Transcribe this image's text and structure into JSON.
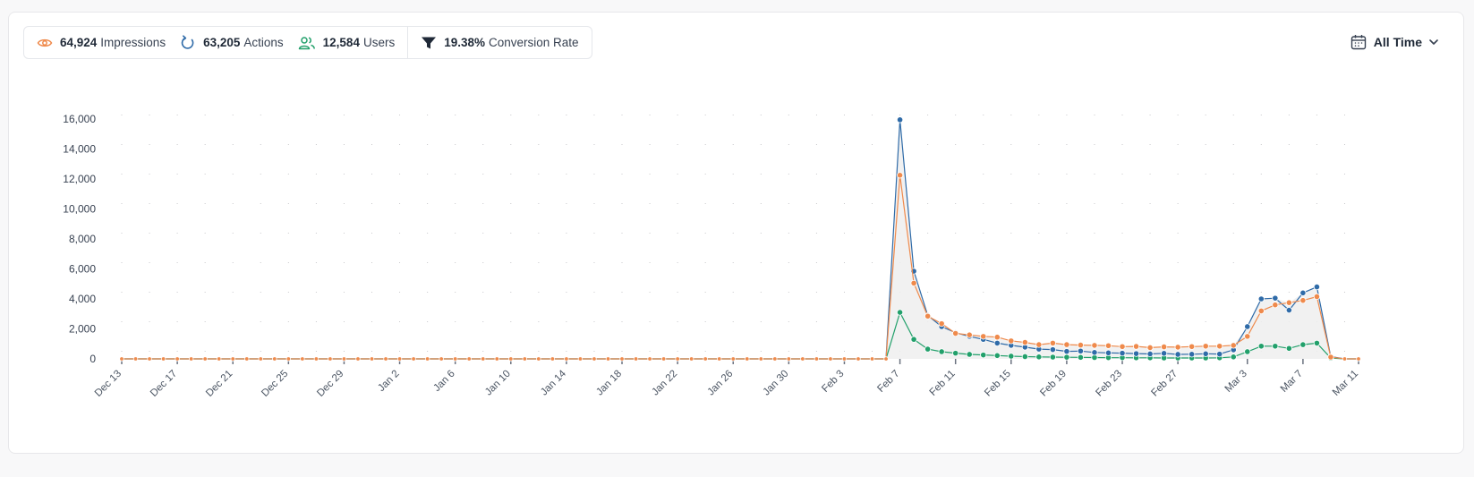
{
  "stats": {
    "impressions": {
      "value": "64,924",
      "label": "Impressions",
      "icon": "eye-icon",
      "color": "#ef8a4c"
    },
    "actions": {
      "value": "63,205",
      "label": "Actions",
      "icon": "refresh-icon",
      "color": "#2f6ba8"
    },
    "users": {
      "value": "12,584",
      "label": "Users",
      "icon": "users-icon",
      "color": "#22a06b"
    },
    "conversion": {
      "value": "19.38%",
      "label": "Conversion Rate",
      "icon": "funnel-icon",
      "color": "#1f2937"
    }
  },
  "range": {
    "label": "All Time",
    "icon": "calendar-icon",
    "chevron": "chevron-down-icon"
  },
  "chart_data": {
    "type": "line",
    "title": "",
    "xlabel": "",
    "ylabel": "",
    "ylim": [
      0,
      16000
    ],
    "yticks": [
      0,
      2000,
      4000,
      6000,
      8000,
      10000,
      12000,
      14000,
      16000
    ],
    "x_start": "2023-12-13",
    "x_end": "2024-03-11",
    "x_ticks": [
      "Dec 13",
      "Dec 17",
      "Dec 21",
      "Dec 25",
      "Dec 29",
      "Jan 2",
      "Jan 6",
      "Jan 10",
      "Jan 14",
      "Jan 18",
      "Jan 22",
      "Jan 26",
      "Jan 30",
      "Feb 3",
      "Feb 7",
      "Feb 11",
      "Feb 15",
      "Feb 19",
      "Feb 23",
      "Feb 27",
      "Mar 3",
      "Mar 7",
      "Mar 11"
    ],
    "grid": true,
    "colors": {
      "actions": "#2f6ba8",
      "impressions": "#ef8a4c",
      "users": "#22a06b",
      "area": "#efefef"
    },
    "series": [
      {
        "name": "Actions",
        "key": "actions",
        "points": [
          [
            "Feb 7",
            15950
          ],
          [
            "Feb 8",
            5850
          ],
          [
            "Feb 9",
            2900
          ],
          [
            "Feb 10",
            2150
          ],
          [
            "Feb 11",
            1750
          ],
          [
            "Feb 12",
            1500
          ],
          [
            "Feb 13",
            1300
          ],
          [
            "Feb 14",
            1050
          ],
          [
            "Feb 15",
            900
          ],
          [
            "Feb 16",
            780
          ],
          [
            "Feb 17",
            650
          ],
          [
            "Feb 18",
            620
          ],
          [
            "Feb 19",
            500
          ],
          [
            "Feb 20",
            520
          ],
          [
            "Feb 21",
            430
          ],
          [
            "Feb 22",
            400
          ],
          [
            "Feb 23",
            380
          ],
          [
            "Feb 24",
            350
          ],
          [
            "Feb 25",
            330
          ],
          [
            "Feb 26",
            370
          ],
          [
            "Feb 27",
            300
          ],
          [
            "Feb 28",
            310
          ],
          [
            "Feb 29",
            340
          ],
          [
            "Mar 1",
            320
          ],
          [
            "Mar 2",
            600
          ],
          [
            "Mar 3",
            2150
          ],
          [
            "Mar 4",
            4000
          ],
          [
            "Mar 5",
            4050
          ],
          [
            "Mar 6",
            3250
          ],
          [
            "Mar 7",
            4400
          ],
          [
            "Mar 8",
            4800
          ],
          [
            "Mar 9",
            150
          ],
          [
            "Mar 10",
            0
          ]
        ]
      },
      {
        "name": "Impressions",
        "key": "impressions",
        "points": [
          [
            "Feb 7",
            12250
          ],
          [
            "Feb 8",
            5050
          ],
          [
            "Feb 9",
            2850
          ],
          [
            "Feb 10",
            2350
          ],
          [
            "Feb 11",
            1700
          ],
          [
            "Feb 12",
            1600
          ],
          [
            "Feb 13",
            1500
          ],
          [
            "Feb 14",
            1450
          ],
          [
            "Feb 15",
            1200
          ],
          [
            "Feb 16",
            1100
          ],
          [
            "Feb 17",
            950
          ],
          [
            "Feb 18",
            1050
          ],
          [
            "Feb 19",
            950
          ],
          [
            "Feb 20",
            920
          ],
          [
            "Feb 21",
            900
          ],
          [
            "Feb 22",
            880
          ],
          [
            "Feb 23",
            820
          ],
          [
            "Feb 24",
            830
          ],
          [
            "Feb 25",
            750
          ],
          [
            "Feb 26",
            800
          ],
          [
            "Feb 27",
            780
          ],
          [
            "Feb 28",
            820
          ],
          [
            "Feb 29",
            850
          ],
          [
            "Mar 1",
            850
          ],
          [
            "Mar 2",
            900
          ],
          [
            "Mar 3",
            1500
          ],
          [
            "Mar 4",
            3200
          ],
          [
            "Mar 5",
            3600
          ],
          [
            "Mar 6",
            3750
          ],
          [
            "Mar 7",
            3900
          ],
          [
            "Mar 8",
            4150
          ],
          [
            "Mar 9",
            120
          ],
          [
            "Mar 10",
            0
          ]
        ]
      },
      {
        "name": "Users",
        "key": "users",
        "points": [
          [
            "Feb 7",
            3100
          ],
          [
            "Feb 8",
            1300
          ],
          [
            "Feb 9",
            650
          ],
          [
            "Feb 10",
            480
          ],
          [
            "Feb 11",
            380
          ],
          [
            "Feb 12",
            300
          ],
          [
            "Feb 13",
            260
          ],
          [
            "Feb 14",
            220
          ],
          [
            "Feb 15",
            180
          ],
          [
            "Feb 16",
            150
          ],
          [
            "Feb 17",
            130
          ],
          [
            "Feb 18",
            120
          ],
          [
            "Feb 19",
            110
          ],
          [
            "Feb 20",
            100
          ],
          [
            "Feb 21",
            90
          ],
          [
            "Feb 22",
            80
          ],
          [
            "Feb 23",
            80
          ],
          [
            "Feb 24",
            70
          ],
          [
            "Feb 25",
            70
          ],
          [
            "Feb 26",
            60
          ],
          [
            "Feb 27",
            60
          ],
          [
            "Feb 28",
            60
          ],
          [
            "Feb 29",
            60
          ],
          [
            "Mar 1",
            70
          ],
          [
            "Mar 2",
            130
          ],
          [
            "Mar 3",
            480
          ],
          [
            "Mar 4",
            850
          ],
          [
            "Mar 5",
            850
          ],
          [
            "Mar 6",
            700
          ],
          [
            "Mar 7",
            950
          ],
          [
            "Mar 8",
            1050
          ],
          [
            "Mar 9",
            60
          ],
          [
            "Mar 10",
            0
          ]
        ]
      }
    ]
  }
}
